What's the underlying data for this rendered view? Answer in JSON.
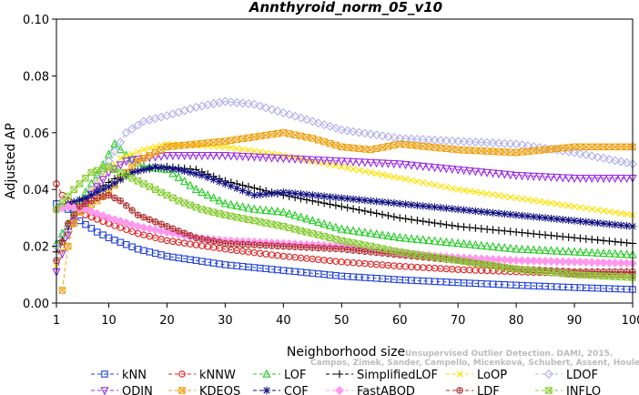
{
  "chart_data": {
    "type": "line",
    "title": "Annthyroid_norm_05_v10",
    "xlabel": "Neighborhood size",
    "ylabel": "Adjusted AP",
    "xlim": [
      1,
      100
    ],
    "ylim": [
      0,
      0.1
    ],
    "x_ticks": [
      "1",
      "10",
      "20",
      "30",
      "40",
      "50",
      "60",
      "70",
      "80",
      "90",
      "100"
    ],
    "y_ticks": [
      "0.00",
      "0.02",
      "0.04",
      "0.06",
      "0.08",
      "0.10"
    ],
    "grid": false,
    "legend_position": "bottom",
    "watermark": [
      "Unsupervised Outlier Detection. DAMI, 2015.",
      "Campos, Zimek, Sander, Campello, Micenková, Schubert, Assent, Houle"
    ],
    "series": [
      {
        "name": "kNN",
        "color": "#1f3fd6",
        "marker": "square",
        "points": [
          [
            1,
            0.035
          ],
          [
            3,
            0.033
          ],
          [
            5,
            0.029
          ],
          [
            8,
            0.025
          ],
          [
            10,
            0.023
          ],
          [
            15,
            0.019
          ],
          [
            20,
            0.0165
          ],
          [
            30,
            0.0135
          ],
          [
            40,
            0.0115
          ],
          [
            50,
            0.0095
          ],
          [
            60,
            0.0082
          ],
          [
            70,
            0.0072
          ],
          [
            80,
            0.0063
          ],
          [
            90,
            0.0055
          ],
          [
            100,
            0.0048
          ]
        ]
      },
      {
        "name": "kNNW",
        "color": "#e02020",
        "marker": "circle",
        "points": [
          [
            1,
            0.042
          ],
          [
            2,
            0.038
          ],
          [
            4,
            0.034
          ],
          [
            6,
            0.031
          ],
          [
            10,
            0.028
          ],
          [
            15,
            0.0245
          ],
          [
            20,
            0.022
          ],
          [
            30,
            0.019
          ],
          [
            40,
            0.0165
          ],
          [
            50,
            0.0145
          ],
          [
            60,
            0.013
          ],
          [
            70,
            0.0118
          ],
          [
            80,
            0.011
          ],
          [
            90,
            0.0104
          ],
          [
            100,
            0.0098
          ]
        ]
      },
      {
        "name": "LOF",
        "color": "#22cc22",
        "marker": "triangle-up",
        "points": [
          [
            1,
            0.021
          ],
          [
            3,
            0.028
          ],
          [
            5,
            0.036
          ],
          [
            8,
            0.045
          ],
          [
            11,
            0.056
          ],
          [
            13,
            0.052
          ],
          [
            16,
            0.048
          ],
          [
            20,
            0.047
          ],
          [
            25,
            0.04
          ],
          [
            30,
            0.035
          ],
          [
            35,
            0.033
          ],
          [
            40,
            0.032
          ],
          [
            50,
            0.026
          ],
          [
            60,
            0.023
          ],
          [
            70,
            0.021
          ],
          [
            80,
            0.019
          ],
          [
            90,
            0.018
          ],
          [
            100,
            0.017
          ]
        ]
      },
      {
        "name": "SimplifiedLOF",
        "color": "#000000",
        "marker": "plus",
        "points": [
          [
            1,
            0.018
          ],
          [
            3,
            0.026
          ],
          [
            5,
            0.034
          ],
          [
            8,
            0.04
          ],
          [
            12,
            0.045
          ],
          [
            16,
            0.047
          ],
          [
            20,
            0.048
          ],
          [
            25,
            0.047
          ],
          [
            30,
            0.043
          ],
          [
            40,
            0.038
          ],
          [
            50,
            0.034
          ],
          [
            60,
            0.03
          ],
          [
            70,
            0.027
          ],
          [
            80,
            0.025
          ],
          [
            90,
            0.023
          ],
          [
            100,
            0.021
          ]
        ]
      },
      {
        "name": "LoOP",
        "color": "#ffe000",
        "marker": "x",
        "points": [
          [
            1,
            0.013
          ],
          [
            3,
            0.024
          ],
          [
            5,
            0.034
          ],
          [
            8,
            0.043
          ],
          [
            12,
            0.051
          ],
          [
            16,
            0.054
          ],
          [
            20,
            0.056
          ],
          [
            30,
            0.055
          ],
          [
            40,
            0.052
          ],
          [
            50,
            0.048
          ],
          [
            60,
            0.044
          ],
          [
            70,
            0.04
          ],
          [
            80,
            0.037
          ],
          [
            90,
            0.034
          ],
          [
            100,
            0.031
          ]
        ]
      },
      {
        "name": "LDOF",
        "color": "#b0b0f0",
        "marker": "diamond",
        "points": [
          [
            1,
            0.02
          ],
          [
            4,
            0.03
          ],
          [
            7,
            0.04
          ],
          [
            10,
            0.05
          ],
          [
            13,
            0.06
          ],
          [
            16,
            0.064
          ],
          [
            20,
            0.066
          ],
          [
            25,
            0.069
          ],
          [
            30,
            0.071
          ],
          [
            35,
            0.07
          ],
          [
            40,
            0.067
          ],
          [
            50,
            0.061
          ],
          [
            60,
            0.058
          ],
          [
            70,
            0.057
          ],
          [
            80,
            0.056
          ],
          [
            90,
            0.053
          ],
          [
            100,
            0.049
          ]
        ]
      },
      {
        "name": "ODIN",
        "color": "#9a2be2",
        "marker": "triangle-down",
        "points": [
          [
            1,
            0.011
          ],
          [
            3,
            0.024
          ],
          [
            5,
            0.033
          ],
          [
            8,
            0.041
          ],
          [
            10,
            0.046
          ],
          [
            13,
            0.05
          ],
          [
            16,
            0.051
          ],
          [
            20,
            0.052
          ],
          [
            30,
            0.052
          ],
          [
            40,
            0.051
          ],
          [
            50,
            0.05
          ],
          [
            60,
            0.049
          ],
          [
            70,
            0.047
          ],
          [
            80,
            0.045
          ],
          [
            90,
            0.044
          ],
          [
            100,
            0.044
          ]
        ]
      },
      {
        "name": "KDEOS",
        "color": "#f0a010",
        "marker": "square-x",
        "points": [
          [
            2,
            0.0045
          ],
          [
            3,
            0.02
          ],
          [
            4,
            0.028
          ],
          [
            5,
            0.032
          ],
          [
            8,
            0.036
          ],
          [
            10,
            0.039
          ],
          [
            12,
            0.044
          ],
          [
            15,
            0.05
          ],
          [
            20,
            0.055
          ],
          [
            30,
            0.057
          ],
          [
            40,
            0.06
          ],
          [
            45,
            0.058
          ],
          [
            50,
            0.055
          ],
          [
            55,
            0.054
          ],
          [
            60,
            0.056
          ],
          [
            65,
            0.055
          ],
          [
            70,
            0.054
          ],
          [
            80,
            0.053
          ],
          [
            90,
            0.055
          ],
          [
            100,
            0.055
          ]
        ]
      },
      {
        "name": "COF",
        "color": "#101080",
        "marker": "star",
        "points": [
          [
            1,
            0.033
          ],
          [
            3,
            0.035
          ],
          [
            6,
            0.037
          ],
          [
            10,
            0.041
          ],
          [
            14,
            0.046
          ],
          [
            18,
            0.048
          ],
          [
            22,
            0.047
          ],
          [
            26,
            0.045
          ],
          [
            30,
            0.042
          ],
          [
            35,
            0.038
          ],
          [
            40,
            0.039
          ],
          [
            45,
            0.038
          ],
          [
            50,
            0.037
          ],
          [
            60,
            0.035
          ],
          [
            70,
            0.033
          ],
          [
            80,
            0.031
          ],
          [
            90,
            0.029
          ],
          [
            100,
            0.027
          ]
        ]
      },
      {
        "name": "FastABOD",
        "color": "#ff99ee",
        "marker": "diamond-filled",
        "points": [
          [
            1,
            0.033
          ],
          [
            3,
            0.034
          ],
          [
            6,
            0.033
          ],
          [
            10,
            0.03
          ],
          [
            15,
            0.027
          ],
          [
            20,
            0.025
          ],
          [
            25,
            0.023
          ],
          [
            30,
            0.022
          ],
          [
            40,
            0.021
          ],
          [
            50,
            0.02
          ],
          [
            60,
            0.0175
          ],
          [
            70,
            0.016
          ],
          [
            80,
            0.015
          ],
          [
            90,
            0.0145
          ],
          [
            100,
            0.014
          ]
        ]
      },
      {
        "name": "LDF",
        "color": "#b03030",
        "marker": "circle-cross",
        "points": [
          [
            1,
            0.015
          ],
          [
            3,
            0.028
          ],
          [
            5,
            0.034
          ],
          [
            8,
            0.037
          ],
          [
            10,
            0.038
          ],
          [
            12,
            0.036
          ],
          [
            15,
            0.031
          ],
          [
            20,
            0.027
          ],
          [
            25,
            0.023
          ],
          [
            30,
            0.021
          ],
          [
            40,
            0.02
          ],
          [
            50,
            0.019
          ],
          [
            60,
            0.017
          ],
          [
            70,
            0.015
          ],
          [
            80,
            0.012
          ],
          [
            90,
            0.011
          ],
          [
            100,
            0.011
          ]
        ]
      },
      {
        "name": "INFLO",
        "color": "#88cc33",
        "marker": "square-x",
        "points": [
          [
            1,
            0.033
          ],
          [
            4,
            0.04
          ],
          [
            7,
            0.046
          ],
          [
            10,
            0.048
          ],
          [
            14,
            0.044
          ],
          [
            18,
            0.04
          ],
          [
            22,
            0.036
          ],
          [
            26,
            0.033
          ],
          [
            30,
            0.031
          ],
          [
            40,
            0.027
          ],
          [
            50,
            0.022
          ],
          [
            60,
            0.018
          ],
          [
            70,
            0.015
          ],
          [
            80,
            0.012
          ],
          [
            90,
            0.01
          ],
          [
            100,
            0.009
          ]
        ]
      }
    ]
  }
}
